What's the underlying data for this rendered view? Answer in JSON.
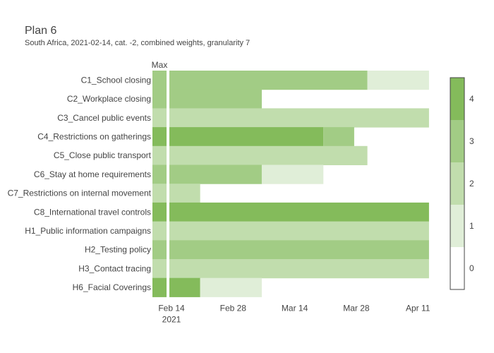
{
  "title": "Plan 6",
  "subtitle": "South Africa, 2021-02-14, cat. -2, combined weights, granularity 7",
  "chart_data": {
    "type": "heatmap",
    "max_label": "Max",
    "x_ticks": [
      {
        "date": "2021-02-14",
        "label": "Feb 14",
        "sublabel": "2021"
      },
      {
        "date": "2021-02-28",
        "label": "Feb 28",
        "sublabel": ""
      },
      {
        "date": "2021-03-14",
        "label": "Mar 14",
        "sublabel": ""
      },
      {
        "date": "2021-03-28",
        "label": "Mar 28",
        "sublabel": ""
      },
      {
        "date": "2021-04-11",
        "label": "Apr 11",
        "sublabel": ""
      }
    ],
    "colorscale": {
      "min": 0,
      "max": 4,
      "ticks": [
        "0",
        "1",
        "2",
        "3",
        "4"
      ],
      "colors": [
        "#ffffff",
        "#e0eed8",
        "#c1ddad",
        "#a2cc85",
        "#84bb5b"
      ]
    },
    "rows": [
      {
        "name": "C1_School closing",
        "max": 3,
        "segments": [
          {
            "start": "2021-02-14",
            "end": "2021-03-31",
            "value": 3
          },
          {
            "start": "2021-03-31",
            "end": "2021-04-14",
            "value": 1
          }
        ]
      },
      {
        "name": "C2_Workplace closing",
        "max": 3,
        "segments": [
          {
            "start": "2021-02-14",
            "end": "2021-03-07",
            "value": 3
          }
        ]
      },
      {
        "name": "C3_Cancel public events",
        "max": 2,
        "segments": [
          {
            "start": "2021-02-14",
            "end": "2021-04-14",
            "value": 2
          }
        ]
      },
      {
        "name": "C4_Restrictions on gatherings",
        "max": 4,
        "segments": [
          {
            "start": "2021-02-14",
            "end": "2021-03-21",
            "value": 4
          },
          {
            "start": "2021-03-21",
            "end": "2021-03-28",
            "value": 3
          }
        ]
      },
      {
        "name": "C5_Close public transport",
        "max": 2,
        "segments": [
          {
            "start": "2021-02-14",
            "end": "2021-03-31",
            "value": 2
          }
        ]
      },
      {
        "name": "C6_Stay at home requirements",
        "max": 3,
        "segments": [
          {
            "start": "2021-02-14",
            "end": "2021-03-07",
            "value": 3
          },
          {
            "start": "2021-03-07",
            "end": "2021-03-21",
            "value": 1
          }
        ]
      },
      {
        "name": "C7_Restrictions on internal movement",
        "max": 2,
        "segments": [
          {
            "start": "2021-02-14",
            "end": "2021-02-21",
            "value": 2
          }
        ]
      },
      {
        "name": "C8_International travel controls",
        "max": 4,
        "segments": [
          {
            "start": "2021-02-14",
            "end": "2021-04-14",
            "value": 4
          }
        ]
      },
      {
        "name": "H1_Public information campaigns",
        "max": 2,
        "segments": [
          {
            "start": "2021-02-14",
            "end": "2021-04-14",
            "value": 2
          }
        ]
      },
      {
        "name": "H2_Testing policy",
        "max": 3,
        "segments": [
          {
            "start": "2021-02-14",
            "end": "2021-04-14",
            "value": 3
          }
        ]
      },
      {
        "name": "H3_Contact tracing",
        "max": 2,
        "segments": [
          {
            "start": "2021-02-14",
            "end": "2021-04-14",
            "value": 2
          }
        ]
      },
      {
        "name": "H6_Facial Coverings",
        "max": 4,
        "segments": [
          {
            "start": "2021-02-14",
            "end": "2021-02-21",
            "value": 4
          },
          {
            "start": "2021-02-21",
            "end": "2021-03-07",
            "value": 1
          }
        ]
      }
    ]
  }
}
